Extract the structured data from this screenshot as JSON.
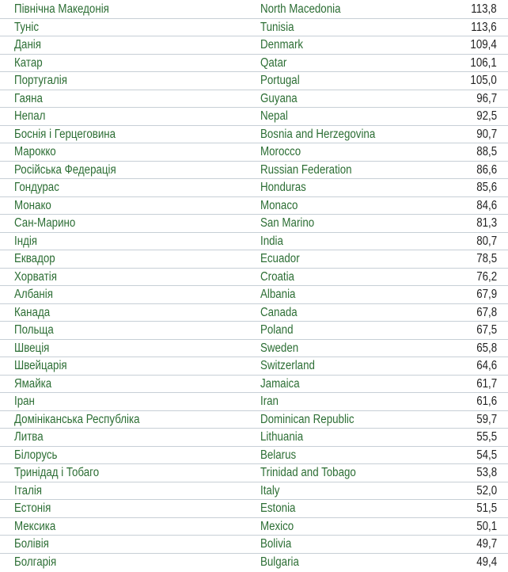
{
  "rows": [
    {
      "ua": "Північна Македонія",
      "en": "North Macedonia",
      "value": "113,8"
    },
    {
      "ua": "Туніс",
      "en": "Tunisia",
      "value": "113,6"
    },
    {
      "ua": "Данія",
      "en": "Denmark",
      "value": "109,4"
    },
    {
      "ua": "Катар",
      "en": "Qatar",
      "value": "106,1"
    },
    {
      "ua": "Португалія",
      "en": "Portugal",
      "value": "105,0"
    },
    {
      "ua": "Гаяна",
      "en": "Guyana",
      "value": "96,7"
    },
    {
      "ua": "Непал",
      "en": "Nepal",
      "value": "92,5"
    },
    {
      "ua": "Боснія і Герцеговина",
      "en": "Bosnia and Herzegovina",
      "value": "90,7"
    },
    {
      "ua": "Марокко",
      "en": "Morocco",
      "value": "88,5"
    },
    {
      "ua": "Російська Федерація",
      "en": "Russian Federation",
      "value": "86,6"
    },
    {
      "ua": "Гондурас",
      "en": "Honduras",
      "value": "85,6"
    },
    {
      "ua": "Монако",
      "en": "Monaco",
      "value": "84,6"
    },
    {
      "ua": "Сан-Марино",
      "en": "San Marino",
      "value": "81,3"
    },
    {
      "ua": "Індія",
      "en": "India",
      "value": "80,7"
    },
    {
      "ua": "Еквадор",
      "en": "Ecuador",
      "value": "78,5"
    },
    {
      "ua": "Хорватія",
      "en": "Croatia",
      "value": "76,2"
    },
    {
      "ua": "Албанія",
      "en": "Albania",
      "value": "67,9"
    },
    {
      "ua": "Канада",
      "en": "Canada",
      "value": "67,8"
    },
    {
      "ua": "Польща",
      "en": "Poland",
      "value": "67,5"
    },
    {
      "ua": "Швеція",
      "en": "Sweden",
      "value": "65,8"
    },
    {
      "ua": "Швейцарія",
      "en": "Switzerland",
      "value": "64,6"
    },
    {
      "ua": "Ямайка",
      "en": "Jamaica",
      "value": "61,7"
    },
    {
      "ua": "Іран",
      "en": "Iran",
      "value": "61,6"
    },
    {
      "ua": "Домініканська Республіка",
      "en": "Dominican Republic",
      "value": "59,7"
    },
    {
      "ua": "Литва",
      "en": "Lithuania",
      "value": "55,5"
    },
    {
      "ua": "Білорусь",
      "en": "Belarus",
      "value": "54,5"
    },
    {
      "ua": "Тринідад і Тобаго",
      "en": "Trinidad and Tobago",
      "value": "53,8"
    },
    {
      "ua": "Італія",
      "en": "Italy",
      "value": "52,0"
    },
    {
      "ua": "Естонія",
      "en": "Estonia",
      "value": "51,5"
    },
    {
      "ua": "Мексика",
      "en": "Mexico",
      "value": "50,1"
    },
    {
      "ua": "Болівія",
      "en": "Bolivia",
      "value": "49,7"
    },
    {
      "ua": "Болгарія",
      "en": "Bulgaria",
      "value": "49,4"
    }
  ]
}
